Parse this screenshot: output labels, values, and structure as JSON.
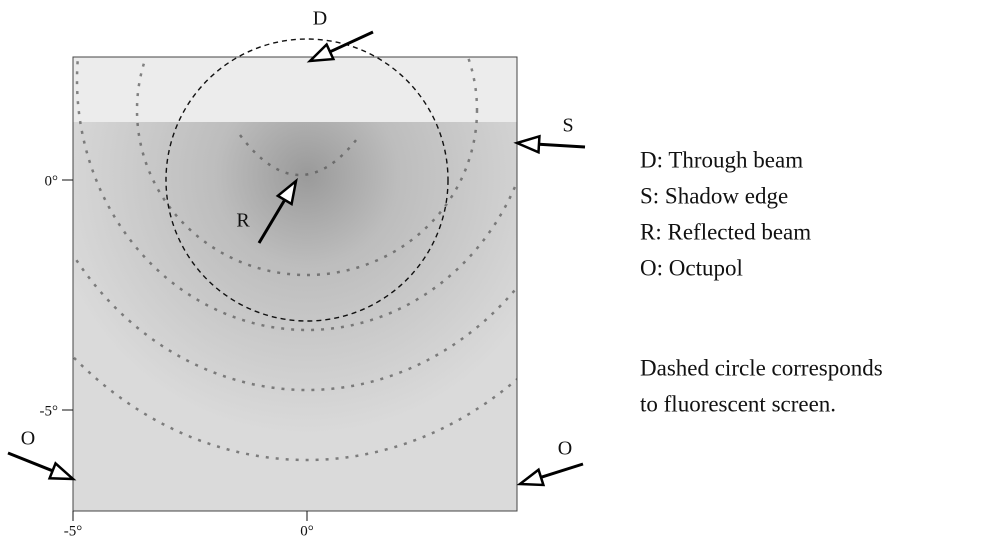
{
  "image": {
    "x_ticks": [
      "-5°",
      "0°"
    ],
    "y_ticks": [
      "0°",
      "-5°"
    ]
  },
  "markers": [
    {
      "label": "D"
    },
    {
      "label": "S"
    },
    {
      "label": "R"
    },
    {
      "label": "O"
    },
    {
      "label": "O"
    }
  ],
  "legend": {
    "items": [
      "D: Through beam",
      "S: Shadow edge",
      "R: Reflected beam",
      "O: Octupol"
    ],
    "note": [
      "Dashed circle corresponds",
      "to fluorescent screen."
    ]
  }
}
